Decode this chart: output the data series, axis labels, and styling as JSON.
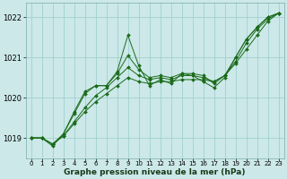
{
  "xlabel": "Graphe pression niveau de la mer (hPa)",
  "bg_color": "#cce8e8",
  "grid_color": "#99cccc",
  "line_color": "#1a6b1a",
  "x_values": [
    0,
    1,
    2,
    3,
    4,
    5,
    6,
    7,
    8,
    9,
    10,
    11,
    12,
    13,
    14,
    15,
    16,
    17,
    18,
    19,
    20,
    21,
    22,
    23
  ],
  "line1": [
    1019.0,
    1019.0,
    1018.85,
    1019.05,
    1019.35,
    1019.65,
    1019.9,
    1020.1,
    1020.3,
    1020.5,
    1020.4,
    1020.35,
    1020.4,
    1020.4,
    1020.45,
    1020.45,
    1020.45,
    1020.4,
    1020.55,
    1020.85,
    1021.2,
    1021.55,
    1021.9,
    1022.1
  ],
  "line2": [
    1019.0,
    1019.0,
    1018.85,
    1019.05,
    1019.4,
    1019.75,
    1020.05,
    1020.25,
    1020.5,
    1020.75,
    1020.55,
    1020.45,
    1020.5,
    1020.45,
    1020.55,
    1020.55,
    1020.5,
    1020.4,
    1020.55,
    1020.9,
    1021.35,
    1021.7,
    1021.95,
    1022.1
  ],
  "line3": [
    1019.0,
    1019.0,
    1018.85,
    1019.1,
    1019.6,
    1020.1,
    1020.3,
    1020.3,
    1020.6,
    1021.05,
    1020.7,
    1020.5,
    1020.55,
    1020.5,
    1020.6,
    1020.6,
    1020.55,
    1020.35,
    1020.55,
    1021.0,
    1021.45,
    1021.75,
    1022.0,
    1022.1
  ],
  "line4": [
    1019.0,
    1019.0,
    1018.8,
    1019.1,
    1019.65,
    1020.15,
    1020.3,
    1020.3,
    1020.65,
    1021.55,
    1020.8,
    1020.3,
    1020.45,
    1020.35,
    1020.6,
    1020.55,
    1020.4,
    1020.25,
    1020.5,
    1021.0,
    1021.45,
    1021.75,
    1022.0,
    1022.1
  ],
  "ylim_min": 1018.5,
  "ylim_max": 1022.35,
  "yticks": [
    1019,
    1020,
    1021,
    1022
  ],
  "xticks": [
    0,
    1,
    2,
    3,
    4,
    5,
    6,
    7,
    8,
    9,
    10,
    11,
    12,
    13,
    14,
    15,
    16,
    17,
    18,
    19,
    20,
    21,
    22,
    23
  ],
  "xlabel_fontsize": 6.5,
  "ytick_fontsize": 6,
  "xtick_fontsize": 5
}
